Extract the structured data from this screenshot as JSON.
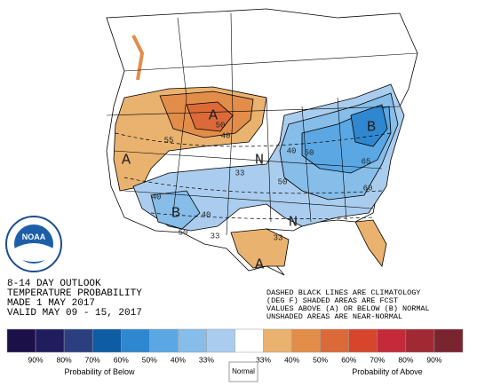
{
  "outlook": {
    "title_lines": [
      "8-14 DAY OUTLOOK",
      "TEMPERATURE PROBABILITY",
      "MADE  1 MAY 2017",
      "VALID  MAY 09 - 15, 2017"
    ],
    "notes": [
      "DASHED BLACK LINES ARE CLIMATOLOGY",
      "(DEG F) SHADED AREAS ARE FCST",
      "VALUES ABOVE (A) OR BELOW (B) NORMAL",
      "UNSHADED AREAS ARE NEAR-NORMAL"
    ],
    "logo": "NOAA",
    "map_labels": [
      "A",
      "A",
      "50",
      "40",
      "55",
      "N",
      "N",
      "33",
      "B",
      "B",
      "40",
      "50",
      "40",
      "50",
      "33",
      "A",
      "33",
      "40",
      "50",
      "60",
      "65"
    ],
    "legend": {
      "colors": [
        "#1b1048",
        "#211c5e",
        "#2b3f80",
        "#0d5ca4",
        "#2f87cf",
        "#5aa7e3",
        "#86bde9",
        "#aacdef",
        "#ffffff",
        "#e9b26f",
        "#e38d4a",
        "#dc6a39",
        "#d8452d",
        "#c42a3a",
        "#a12934",
        "#7a2430"
      ],
      "labels": [
        "90%",
        "80%",
        "70%",
        "60%",
        "50%",
        "40%",
        "33%",
        "33%",
        "40%",
        "50%",
        "60%",
        "70%",
        "80%",
        "90%"
      ],
      "below_title": "Probability of Below",
      "normal_title": "Normal",
      "above_title": "Probability of Above"
    }
  }
}
